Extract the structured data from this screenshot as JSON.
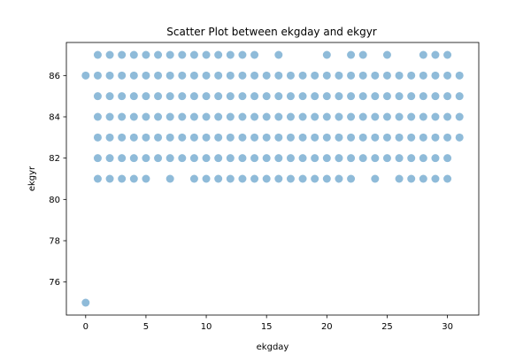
{
  "chart_data": {
    "type": "scatter",
    "title": "Scatter Plot between ekgday and ekgyr",
    "xlabel": "ekgday",
    "ylabel": "ekgyr",
    "xlim": [
      -1.6,
      32.6
    ],
    "ylim": [
      74.4,
      87.6
    ],
    "x_ticks": [
      0,
      5,
      10,
      15,
      20,
      25,
      30
    ],
    "y_ticks": [
      76,
      78,
      80,
      82,
      84,
      86
    ],
    "marker_color": "#1f77b4",
    "marker_alpha": 0.5,
    "grid": false,
    "points": [
      {
        "x": 0,
        "y": 75
      },
      {
        "x": 0,
        "y": 86
      },
      {
        "x": 1,
        "y": 81
      },
      {
        "x": 1,
        "y": 82
      },
      {
        "x": 1,
        "y": 83
      },
      {
        "x": 1,
        "y": 84
      },
      {
        "x": 1,
        "y": 85
      },
      {
        "x": 1,
        "y": 86
      },
      {
        "x": 1,
        "y": 87
      },
      {
        "x": 2,
        "y": 81
      },
      {
        "x": 2,
        "y": 82
      },
      {
        "x": 2,
        "y": 83
      },
      {
        "x": 2,
        "y": 84
      },
      {
        "x": 2,
        "y": 85
      },
      {
        "x": 2,
        "y": 86
      },
      {
        "x": 2,
        "y": 87
      },
      {
        "x": 3,
        "y": 81
      },
      {
        "x": 3,
        "y": 82
      },
      {
        "x": 3,
        "y": 83
      },
      {
        "x": 3,
        "y": 84
      },
      {
        "x": 3,
        "y": 85
      },
      {
        "x": 3,
        "y": 86
      },
      {
        "x": 3,
        "y": 87
      },
      {
        "x": 4,
        "y": 81
      },
      {
        "x": 4,
        "y": 82
      },
      {
        "x": 4,
        "y": 83
      },
      {
        "x": 4,
        "y": 84
      },
      {
        "x": 4,
        "y": 85
      },
      {
        "x": 4,
        "y": 86
      },
      {
        "x": 4,
        "y": 87
      },
      {
        "x": 5,
        "y": 81
      },
      {
        "x": 5,
        "y": 82
      },
      {
        "x": 5,
        "y": 83
      },
      {
        "x": 5,
        "y": 84
      },
      {
        "x": 5,
        "y": 85
      },
      {
        "x": 5,
        "y": 86
      },
      {
        "x": 5,
        "y": 87
      },
      {
        "x": 6,
        "y": 82
      },
      {
        "x": 6,
        "y": 83
      },
      {
        "x": 6,
        "y": 84
      },
      {
        "x": 6,
        "y": 85
      },
      {
        "x": 6,
        "y": 86
      },
      {
        "x": 6,
        "y": 87
      },
      {
        "x": 7,
        "y": 81
      },
      {
        "x": 7,
        "y": 82
      },
      {
        "x": 7,
        "y": 83
      },
      {
        "x": 7,
        "y": 84
      },
      {
        "x": 7,
        "y": 85
      },
      {
        "x": 7,
        "y": 86
      },
      {
        "x": 7,
        "y": 87
      },
      {
        "x": 8,
        "y": 82
      },
      {
        "x": 8,
        "y": 83
      },
      {
        "x": 8,
        "y": 84
      },
      {
        "x": 8,
        "y": 85
      },
      {
        "x": 8,
        "y": 86
      },
      {
        "x": 8,
        "y": 87
      },
      {
        "x": 9,
        "y": 81
      },
      {
        "x": 9,
        "y": 82
      },
      {
        "x": 9,
        "y": 83
      },
      {
        "x": 9,
        "y": 84
      },
      {
        "x": 9,
        "y": 85
      },
      {
        "x": 9,
        "y": 86
      },
      {
        "x": 9,
        "y": 87
      },
      {
        "x": 10,
        "y": 81
      },
      {
        "x": 10,
        "y": 82
      },
      {
        "x": 10,
        "y": 83
      },
      {
        "x": 10,
        "y": 84
      },
      {
        "x": 10,
        "y": 85
      },
      {
        "x": 10,
        "y": 86
      },
      {
        "x": 10,
        "y": 87
      },
      {
        "x": 11,
        "y": 81
      },
      {
        "x": 11,
        "y": 82
      },
      {
        "x": 11,
        "y": 83
      },
      {
        "x": 11,
        "y": 84
      },
      {
        "x": 11,
        "y": 85
      },
      {
        "x": 11,
        "y": 86
      },
      {
        "x": 11,
        "y": 87
      },
      {
        "x": 12,
        "y": 81
      },
      {
        "x": 12,
        "y": 82
      },
      {
        "x": 12,
        "y": 83
      },
      {
        "x": 12,
        "y": 84
      },
      {
        "x": 12,
        "y": 85
      },
      {
        "x": 12,
        "y": 86
      },
      {
        "x": 12,
        "y": 87
      },
      {
        "x": 13,
        "y": 81
      },
      {
        "x": 13,
        "y": 82
      },
      {
        "x": 13,
        "y": 83
      },
      {
        "x": 13,
        "y": 84
      },
      {
        "x": 13,
        "y": 85
      },
      {
        "x": 13,
        "y": 86
      },
      {
        "x": 13,
        "y": 87
      },
      {
        "x": 14,
        "y": 81
      },
      {
        "x": 14,
        "y": 82
      },
      {
        "x": 14,
        "y": 83
      },
      {
        "x": 14,
        "y": 84
      },
      {
        "x": 14,
        "y": 85
      },
      {
        "x": 14,
        "y": 86
      },
      {
        "x": 14,
        "y": 87
      },
      {
        "x": 15,
        "y": 81
      },
      {
        "x": 15,
        "y": 82
      },
      {
        "x": 15,
        "y": 83
      },
      {
        "x": 15,
        "y": 84
      },
      {
        "x": 15,
        "y": 85
      },
      {
        "x": 15,
        "y": 86
      },
      {
        "x": 16,
        "y": 81
      },
      {
        "x": 16,
        "y": 82
      },
      {
        "x": 16,
        "y": 83
      },
      {
        "x": 16,
        "y": 84
      },
      {
        "x": 16,
        "y": 85
      },
      {
        "x": 16,
        "y": 86
      },
      {
        "x": 16,
        "y": 87
      },
      {
        "x": 17,
        "y": 81
      },
      {
        "x": 17,
        "y": 82
      },
      {
        "x": 17,
        "y": 83
      },
      {
        "x": 17,
        "y": 84
      },
      {
        "x": 17,
        "y": 85
      },
      {
        "x": 17,
        "y": 86
      },
      {
        "x": 18,
        "y": 81
      },
      {
        "x": 18,
        "y": 82
      },
      {
        "x": 18,
        "y": 83
      },
      {
        "x": 18,
        "y": 84
      },
      {
        "x": 18,
        "y": 85
      },
      {
        "x": 18,
        "y": 86
      },
      {
        "x": 19,
        "y": 81
      },
      {
        "x": 19,
        "y": 82
      },
      {
        "x": 19,
        "y": 83
      },
      {
        "x": 19,
        "y": 84
      },
      {
        "x": 19,
        "y": 85
      },
      {
        "x": 19,
        "y": 86
      },
      {
        "x": 20,
        "y": 81
      },
      {
        "x": 20,
        "y": 82
      },
      {
        "x": 20,
        "y": 83
      },
      {
        "x": 20,
        "y": 84
      },
      {
        "x": 20,
        "y": 85
      },
      {
        "x": 20,
        "y": 86
      },
      {
        "x": 20,
        "y": 87
      },
      {
        "x": 21,
        "y": 81
      },
      {
        "x": 21,
        "y": 82
      },
      {
        "x": 21,
        "y": 83
      },
      {
        "x": 21,
        "y": 84
      },
      {
        "x": 21,
        "y": 85
      },
      {
        "x": 21,
        "y": 86
      },
      {
        "x": 22,
        "y": 81
      },
      {
        "x": 22,
        "y": 82
      },
      {
        "x": 22,
        "y": 83
      },
      {
        "x": 22,
        "y": 84
      },
      {
        "x": 22,
        "y": 85
      },
      {
        "x": 22,
        "y": 86
      },
      {
        "x": 22,
        "y": 87
      },
      {
        "x": 23,
        "y": 82
      },
      {
        "x": 23,
        "y": 83
      },
      {
        "x": 23,
        "y": 84
      },
      {
        "x": 23,
        "y": 85
      },
      {
        "x": 23,
        "y": 86
      },
      {
        "x": 23,
        "y": 87
      },
      {
        "x": 24,
        "y": 81
      },
      {
        "x": 24,
        "y": 82
      },
      {
        "x": 24,
        "y": 83
      },
      {
        "x": 24,
        "y": 84
      },
      {
        "x": 24,
        "y": 85
      },
      {
        "x": 24,
        "y": 86
      },
      {
        "x": 25,
        "y": 82
      },
      {
        "x": 25,
        "y": 83
      },
      {
        "x": 25,
        "y": 84
      },
      {
        "x": 25,
        "y": 85
      },
      {
        "x": 25,
        "y": 86
      },
      {
        "x": 25,
        "y": 87
      },
      {
        "x": 26,
        "y": 81
      },
      {
        "x": 26,
        "y": 82
      },
      {
        "x": 26,
        "y": 83
      },
      {
        "x": 26,
        "y": 84
      },
      {
        "x": 26,
        "y": 85
      },
      {
        "x": 26,
        "y": 86
      },
      {
        "x": 27,
        "y": 81
      },
      {
        "x": 27,
        "y": 82
      },
      {
        "x": 27,
        "y": 83
      },
      {
        "x": 27,
        "y": 84
      },
      {
        "x": 27,
        "y": 85
      },
      {
        "x": 27,
        "y": 86
      },
      {
        "x": 28,
        "y": 81
      },
      {
        "x": 28,
        "y": 82
      },
      {
        "x": 28,
        "y": 83
      },
      {
        "x": 28,
        "y": 84
      },
      {
        "x": 28,
        "y": 85
      },
      {
        "x": 28,
        "y": 86
      },
      {
        "x": 28,
        "y": 87
      },
      {
        "x": 29,
        "y": 81
      },
      {
        "x": 29,
        "y": 82
      },
      {
        "x": 29,
        "y": 83
      },
      {
        "x": 29,
        "y": 84
      },
      {
        "x": 29,
        "y": 85
      },
      {
        "x": 29,
        "y": 86
      },
      {
        "x": 29,
        "y": 87
      },
      {
        "x": 30,
        "y": 81
      },
      {
        "x": 30,
        "y": 82
      },
      {
        "x": 30,
        "y": 83
      },
      {
        "x": 30,
        "y": 84
      },
      {
        "x": 30,
        "y": 85
      },
      {
        "x": 30,
        "y": 86
      },
      {
        "x": 30,
        "y": 87
      },
      {
        "x": 31,
        "y": 83
      },
      {
        "x": 31,
        "y": 84
      },
      {
        "x": 31,
        "y": 85
      },
      {
        "x": 31,
        "y": 86
      }
    ]
  }
}
